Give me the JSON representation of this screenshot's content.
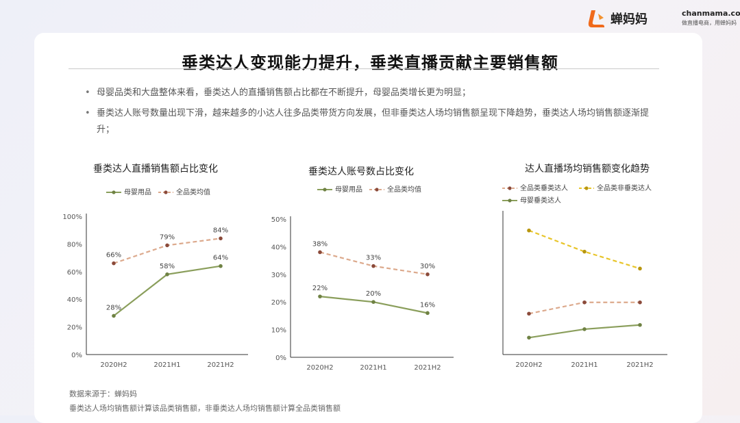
{
  "brand": {
    "name": "蝉妈妈",
    "url": "chanmama.com",
    "slogan": "做直播电商，用蝉妈妈",
    "accent": "#f06a1b"
  },
  "title": "垂类达人变现能力提升，垂类直播贡献主要销售额",
  "bullets": [
    "母婴品类和大盘整体来看，垂类达人的直播销售额占比都在不断提升，母婴品类增长更为明显；",
    "垂类达人账号数量出现下滑，越来越多的小达人往多品类带货方向发展，但非垂类达人场均销售额呈现下降趋势，垂类达人场均销售额逐渐提升；"
  ],
  "chart_data": [
    {
      "type": "line",
      "title": "垂类达人直播销售额占比变化",
      "categories": [
        "2020H2",
        "2021H1",
        "2021H2"
      ],
      "ylim": [
        0,
        100
      ],
      "yticks": [
        "0%",
        "20%",
        "40%",
        "60%",
        "80%",
        "100%"
      ],
      "legend_position": "top-left",
      "series": [
        {
          "name": "母婴用品",
          "values": [
            28,
            58,
            64
          ],
          "labels": [
            "28%",
            "58%",
            "64%"
          ],
          "color": "#8a9e5b",
          "dot": "#6f8244",
          "dashed": false
        },
        {
          "name": "全品类均值",
          "values": [
            66,
            79,
            84
          ],
          "labels": [
            "66%",
            "79%",
            "84%"
          ],
          "color": "#dca98c",
          "dot": "#8b4a3a",
          "dashed": true
        }
      ]
    },
    {
      "type": "line",
      "title": "垂类达人账号数占比变化",
      "categories": [
        "2020H2",
        "2021H1",
        "2021H2"
      ],
      "ylim": [
        0,
        50
      ],
      "yticks": [
        "0%",
        "10%",
        "20%",
        "30%",
        "40%",
        "50%"
      ],
      "legend_position": "top-left",
      "series": [
        {
          "name": "母婴用品",
          "values": [
            22,
            20,
            16
          ],
          "labels": [
            "22%",
            "20%",
            "16%"
          ],
          "color": "#8a9e5b",
          "dot": "#6f8244",
          "dashed": false
        },
        {
          "name": "全品类均值",
          "values": [
            38,
            33,
            30
          ],
          "labels": [
            "38%",
            "33%",
            "30%"
          ],
          "color": "#dca98c",
          "dot": "#8b4a3a",
          "dashed": true
        }
      ]
    },
    {
      "type": "line",
      "title": "达人直播场均销售额变化趋势",
      "categories": [
        "2020H2",
        "2021H1",
        "2021H2"
      ],
      "ylim": [
        0,
        100
      ],
      "yticks": [],
      "legend_position": "top-left",
      "series": [
        {
          "name": "全品类垂类达人",
          "values": [
            29,
            37,
            37
          ],
          "labels": [],
          "color": "#dca98c",
          "dot": "#8b4a3a",
          "dashed": true
        },
        {
          "name": "全品类非垂类达人",
          "values": [
            88,
            73,
            61
          ],
          "labels": [],
          "color": "#e8c52a",
          "dot": "#b8960f",
          "dashed": true
        },
        {
          "name": "母婴垂类达人",
          "values": [
            12,
            18,
            21
          ],
          "labels": [],
          "color": "#8a9e5b",
          "dot": "#6f8244",
          "dashed": false
        }
      ]
    }
  ],
  "footnotes": [
    "数据来源于：蝉妈妈",
    "垂类达人场均销售额计算该品类销售额，非垂类达人场均销售额计算全品类销售额"
  ]
}
